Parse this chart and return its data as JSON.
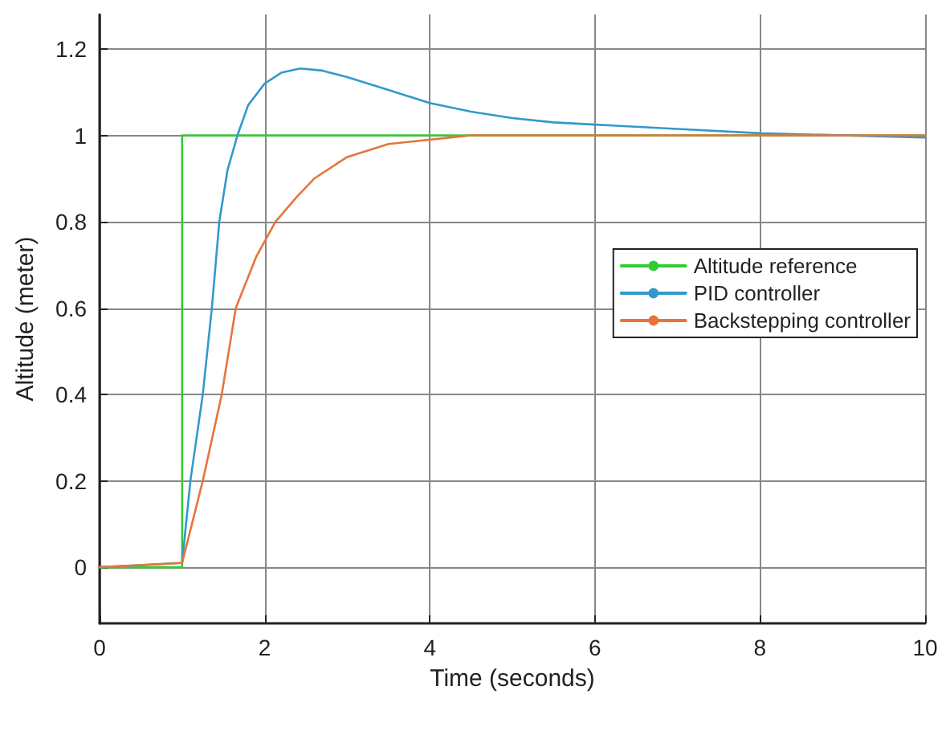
{
  "chart_data": {
    "type": "line",
    "xlabel": "Time (seconds)",
    "ylabel": "Altitude (meter)",
    "xlim": [
      0,
      10
    ],
    "xticks": [
      0,
      2,
      4,
      6,
      8,
      10
    ],
    "ylim": [
      -0.13,
      1.28
    ],
    "yticks": [
      0,
      0.2,
      0.4,
      0.6,
      0.8,
      1,
      1.2
    ],
    "grid": true,
    "legend": "right",
    "marker": "none",
    "line_style": "solid",
    "series": [
      {
        "name": "Altitude reference",
        "color": "#33cc33",
        "x": [
          0,
          1,
          1,
          10
        ],
        "values": [
          0,
          0,
          1,
          1
        ]
      },
      {
        "name": "PID controller",
        "color": "#3399cc",
        "x": [
          0,
          1,
          1.1,
          1.25,
          1.36,
          1.45,
          1.55,
          1.67,
          1.8,
          2,
          2.2,
          2.43,
          2.7,
          3,
          3.5,
          4,
          4.5,
          5,
          5.5,
          6,
          7,
          8,
          10
        ],
        "values": [
          0,
          0.01,
          0.2,
          0.4,
          0.6,
          0.8,
          0.92,
          1,
          1.07,
          1.12,
          1.145,
          1.155,
          1.15,
          1.135,
          1.105,
          1.075,
          1.055,
          1.04,
          1.03,
          1.025,
          1.015,
          1.005,
          0.995
        ]
      },
      {
        "name": "Backstepping controller",
        "color": "#e8743b",
        "x": [
          0,
          0.5,
          1,
          1.25,
          1.48,
          1.65,
          1.9,
          2.13,
          2.4,
          2.6,
          3,
          3.5,
          4,
          4.5,
          6,
          8,
          10
        ],
        "values": [
          0,
          0.005,
          0.01,
          0.2,
          0.4,
          0.6,
          0.72,
          0.8,
          0.86,
          0.9,
          0.95,
          0.98,
          0.99,
          1,
          1,
          1,
          1
        ]
      }
    ]
  }
}
